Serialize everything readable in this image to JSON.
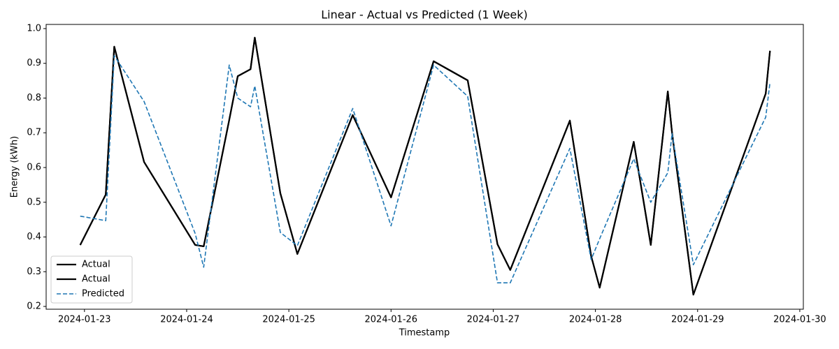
{
  "chart_data": {
    "type": "line",
    "title": "Linear - Actual vs Predicted (1 Week)",
    "x_label": "Timestamp",
    "y_label": "Energy (kWh)",
    "x": [
      "2024-01-22T23:00",
      "2024-01-23T05:00",
      "2024-01-23T07:00",
      "2024-01-23T14:00",
      "2024-01-24T02:00",
      "2024-01-24T04:00",
      "2024-01-24T10:00",
      "2024-01-24T12:00",
      "2024-01-24T15:00",
      "2024-01-24T16:00",
      "2024-01-24T22:00",
      "2024-01-25T02:00",
      "2024-01-25T15:00",
      "2024-01-26T00:00",
      "2024-01-26T10:00",
      "2024-01-26T18:00",
      "2024-01-27T01:00",
      "2024-01-27T04:00",
      "2024-01-27T18:00",
      "2024-01-27T23:00",
      "2024-01-28T01:00",
      "2024-01-28T09:00",
      "2024-01-28T13:00",
      "2024-01-28T17:00",
      "2024-01-28T18:00",
      "2024-01-28T23:00",
      "2024-01-29T16:00",
      "2024-01-29T17:00"
    ],
    "series": [
      {
        "name": "Actual",
        "color": "#000000",
        "linestyle": "solid",
        "width": 2.2,
        "values": [
          0.377,
          0.522,
          0.948,
          0.616,
          0.377,
          0.373,
          0.737,
          0.863,
          0.883,
          0.974,
          0.526,
          0.351,
          0.751,
          0.514,
          0.906,
          0.851,
          0.379,
          0.305,
          0.735,
          0.345,
          0.254,
          0.674,
          0.377,
          0.819,
          0.7,
          0.234,
          0.813,
          0.936
        ]
      },
      {
        "name": "Actual",
        "color": "#000000",
        "linestyle": "solid",
        "width": 2.2,
        "values": [
          0.377,
          0.522,
          0.948,
          0.616,
          0.377,
          0.373,
          0.737,
          0.863,
          0.883,
          0.974,
          0.526,
          0.351,
          0.751,
          0.514,
          0.906,
          0.851,
          0.379,
          0.305,
          0.735,
          0.345,
          0.254,
          0.674,
          0.377,
          0.819,
          0.7,
          0.234,
          0.813,
          0.936
        ]
      },
      {
        "name": "Predicted",
        "color": "#1f77b4",
        "linestyle": "dashed",
        "width": 1.6,
        "values": [
          0.46,
          0.447,
          0.922,
          0.79,
          0.41,
          0.313,
          0.895,
          0.8,
          0.775,
          0.835,
          0.413,
          0.375,
          0.77,
          0.432,
          0.895,
          0.805,
          0.268,
          0.268,
          0.655,
          0.335,
          0.395,
          0.625,
          0.5,
          0.585,
          0.698,
          0.32,
          0.745,
          0.845
        ]
      }
    ],
    "xlim": [
      "2024-01-22T15:00",
      "2024-01-30T00:50"
    ],
    "xticks": [
      "2024-01-23",
      "2024-01-24",
      "2024-01-25",
      "2024-01-26",
      "2024-01-27",
      "2024-01-28",
      "2024-01-29",
      "2024-01-30"
    ],
    "ylim": [
      0.192,
      1.012
    ],
    "yticks": [
      0.2,
      0.3,
      0.4,
      0.5,
      0.6,
      0.7,
      0.8,
      0.9,
      {
        "value": 1,
        "label": "1.0"
      }
    ],
    "legend": "lower left"
  }
}
